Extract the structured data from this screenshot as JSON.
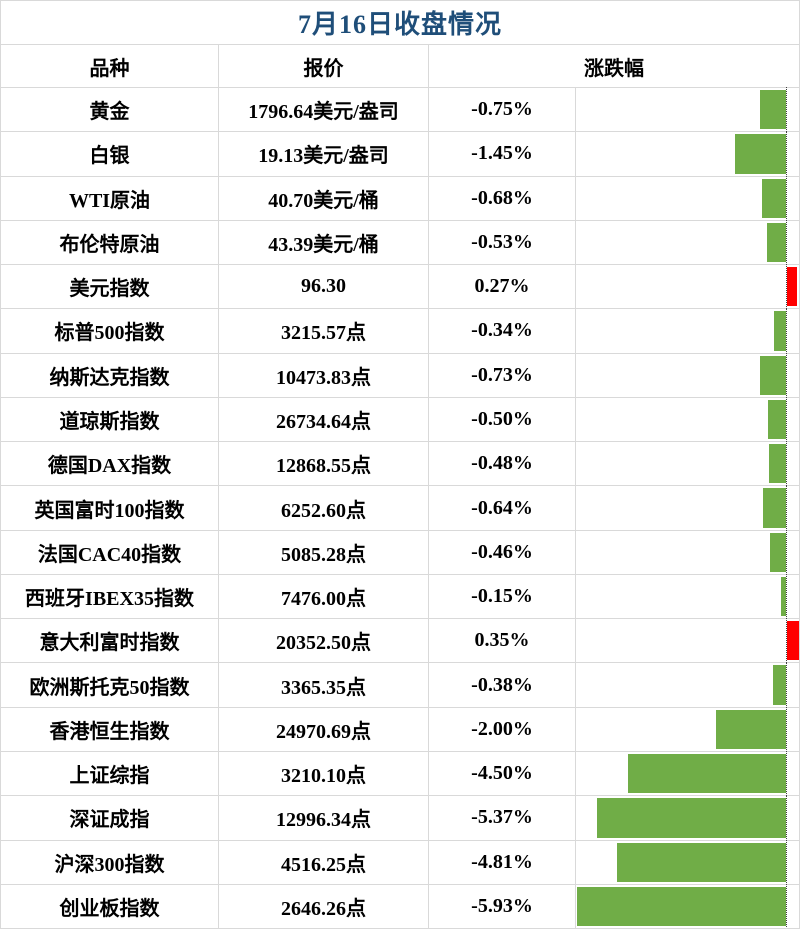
{
  "title": "7月16日收盘情况",
  "header": {
    "name": "品种",
    "quote": "报价",
    "change": "涨跌幅"
  },
  "colors": {
    "title_text": "#1F4E79",
    "down_bar": "#70AD47",
    "up_bar": "#FF0000",
    "gridline": "#D9D9D9",
    "zero_axis": "#404040"
  },
  "rows": [
    {
      "name": "黄金",
      "quote": "1796.64美元/盎司",
      "change": "-0.75%",
      "value": -0.75
    },
    {
      "name": "白银",
      "quote": "19.13美元/盎司",
      "change": "-1.45%",
      "value": -1.45
    },
    {
      "name": "WTI原油",
      "quote": "40.70美元/桶",
      "change": "-0.68%",
      "value": -0.68
    },
    {
      "name": "布伦特原油",
      "quote": "43.39美元/桶",
      "change": "-0.53%",
      "value": -0.53
    },
    {
      "name": "美元指数",
      "quote": "96.30",
      "change": "0.27%",
      "value": 0.27
    },
    {
      "name": "标普500指数",
      "quote": "3215.57点",
      "change": "-0.34%",
      "value": -0.34
    },
    {
      "name": "纳斯达克指数",
      "quote": "10473.83点",
      "change": "-0.73%",
      "value": -0.73
    },
    {
      "name": "道琼斯指数",
      "quote": "26734.64点",
      "change": "-0.50%",
      "value": -0.5
    },
    {
      "name": "德国DAX指数",
      "quote": "12868.55点",
      "change": "-0.48%",
      "value": -0.48
    },
    {
      "name": "英国富时100指数",
      "quote": "6252.60点",
      "change": "-0.64%",
      "value": -0.64
    },
    {
      "name": "法国CAC40指数",
      "quote": "5085.28点",
      "change": "-0.46%",
      "value": -0.46
    },
    {
      "name": "西班牙IBEX35指数",
      "quote": "7476.00点",
      "change": "-0.15%",
      "value": -0.15
    },
    {
      "name": "意大利富时指数",
      "quote": "20352.50点",
      "change": "0.35%",
      "value": 0.35
    },
    {
      "name": "欧洲斯托克50指数",
      "quote": "3365.35点",
      "change": "-0.38%",
      "value": -0.38
    },
    {
      "name": "香港恒生指数",
      "quote": "24970.69点",
      "change": "-2.00%",
      "value": -2.0
    },
    {
      "name": "上证综指",
      "quote": "3210.10点",
      "change": "-4.50%",
      "value": -4.5
    },
    {
      "name": "深证成指",
      "quote": "12996.34点",
      "change": "-5.37%",
      "value": -5.37
    },
    {
      "name": "沪深300指数",
      "quote": "4516.25点",
      "change": "-4.81%",
      "value": -4.81
    },
    {
      "name": "创业板指数",
      "quote": "2646.26点",
      "change": "-5.93%",
      "value": -5.93
    }
  ],
  "chart_data": {
    "type": "bar",
    "orientation": "horizontal",
    "title": "7月16日收盘情况",
    "categories": [
      "黄金",
      "白银",
      "WTI原油",
      "布伦特原油",
      "美元指数",
      "标普500指数",
      "纳斯达克指数",
      "道琼斯指数",
      "德国DAX指数",
      "英国富时100指数",
      "法国CAC40指数",
      "西班牙IBEX35指数",
      "意大利富时指数",
      "欧洲斯托克50指数",
      "香港恒生指数",
      "上证综指",
      "深证成指",
      "沪深300指数",
      "创业板指数"
    ],
    "values": [
      -0.75,
      -1.45,
      -0.68,
      -0.53,
      0.27,
      -0.34,
      -0.73,
      -0.5,
      -0.48,
      -0.64,
      -0.46,
      -0.15,
      0.35,
      -0.38,
      -2.0,
      -4.5,
      -5.37,
      -4.81,
      -5.93
    ],
    "value_unit": "%",
    "quotes": [
      "1796.64美元/盎司",
      "19.13美元/盎司",
      "40.70美元/桶",
      "43.39美元/桶",
      "96.30",
      "3215.57点",
      "10473.83点",
      "26734.64点",
      "12868.55点",
      "6252.60点",
      "5085.28点",
      "7476.00点",
      "20352.50点",
      "3365.35点",
      "24970.69点",
      "3210.10点",
      "12996.34点",
      "4516.25点",
      "2646.26点"
    ],
    "column_headers": [
      "品种",
      "报价",
      "涨跌幅"
    ],
    "xlim": [
      -6.0,
      0.4
    ],
    "positive_color": "#FF0000",
    "negative_color": "#70AD47",
    "grid": false,
    "legend": false
  }
}
